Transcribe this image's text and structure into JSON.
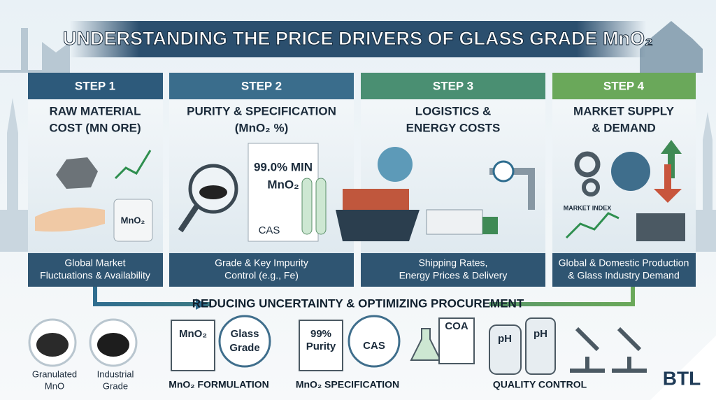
{
  "title": "UNDERSTANDING THE PRICE DRIVERS OF GLASS GRADE MnO₂",
  "steps": [
    {
      "label": "STEP 1",
      "heading": [
        "RAW MATERIAL",
        "COST (MN ORE)"
      ],
      "image_labels": [
        "MnO₂"
      ],
      "caption": [
        "Global Market",
        "Fluctuations & Availability"
      ]
    },
    {
      "label": "STEP 2",
      "heading": [
        "PURITY & SPECIFICATION",
        "(MnO₂ %)"
      ],
      "image_labels": [
        "99.0% MIN",
        "MnO₂",
        "CAS"
      ],
      "caption": [
        "Grade & Key Impurity",
        "Control (e.g., Fe)"
      ]
    },
    {
      "label": "STEP 3",
      "heading": [
        "LOGISTICS &",
        "ENERGY COSTS"
      ],
      "image_labels": [],
      "caption": [
        "Shipping Rates,",
        "Energy Prices & Delivery"
      ]
    },
    {
      "label": "STEP 4",
      "heading": [
        "MARKET SUPPLY",
        "& DEMAND"
      ],
      "image_labels": [
        "MARKET INDEX"
      ],
      "caption": [
        "Global & Domestic Production",
        "& Glass Industry Demand"
      ]
    }
  ],
  "banner": "REDUCING UNCERTAINTY & OPTIMIZING PROCUREMENT",
  "bottom": {
    "materials": [
      [
        "Granulated",
        "MnO"
      ],
      [
        "Industrial",
        "Grade"
      ]
    ],
    "formulation": {
      "badges": [
        [
          "MnO₂"
        ],
        [
          "Glass",
          "Grade"
        ]
      ],
      "label": "MnO₂ FORMULATION"
    },
    "specification": {
      "badges": [
        [
          "99%",
          "Purity"
        ],
        [
          "CAS"
        ]
      ],
      "label": "MnO₂ SPECIFICATION"
    },
    "quality": {
      "badges": [
        [
          "COA"
        ],
        [
          "pH"
        ],
        [
          "pH"
        ]
      ],
      "label": "QUALITY CONTROL"
    }
  },
  "logo": "BTL"
}
